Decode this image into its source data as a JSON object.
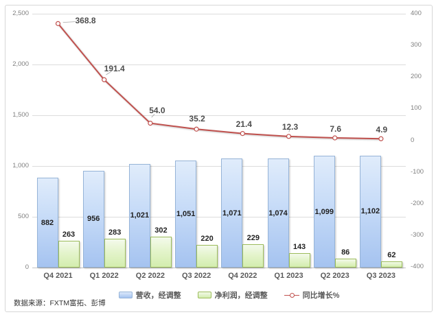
{
  "source_note": "数据来源：FXTM富拓、彭博",
  "colors": {
    "bar_revenue_fill_top": "#E0ECFB",
    "bar_revenue_fill_bottom": "#A5C3F0",
    "bar_revenue_border": "#95B3D7",
    "bar_profit_fill_top": "#F4FAEC",
    "bar_profit_fill_bottom": "#D3EDAE",
    "bar_profit_border": "#9BBB59",
    "line_growth": "#C0504D",
    "gridline": "#DCDCDC",
    "axis_text": "#7F7F7F",
    "label_text": "#595959"
  },
  "chart_data": {
    "type": "combo-bar-line",
    "categories": [
      "Q4 2021",
      "Q1 2022",
      "Q2 2022",
      "Q3 2022",
      "Q4 2022",
      "Q1 2023",
      "Q2 2023",
      "Q3 2023"
    ],
    "series": [
      {
        "name": "营收，经调整",
        "type": "bar",
        "axis": "left",
        "values": [
          882,
          956,
          1021,
          1051,
          1071,
          1074,
          1099,
          1102
        ],
        "labels": [
          "882",
          "956",
          "1,021",
          "1,051",
          "1,071",
          "1,074",
          "1,099",
          "1,102"
        ],
        "label_position": "inside-center"
      },
      {
        "name": "净利润，经调整",
        "type": "bar",
        "axis": "left",
        "values": [
          263,
          283,
          302,
          220,
          229,
          143,
          86,
          62
        ],
        "labels": [
          "263",
          "283",
          "302",
          "220",
          "229",
          "143",
          "86",
          "62"
        ],
        "label_position": "outside-top"
      },
      {
        "name": "同比增长%",
        "type": "line",
        "axis": "right",
        "values": [
          368.8,
          191.4,
          54.0,
          35.2,
          21.4,
          12.3,
          7.6,
          4.9
        ],
        "labels": [
          "368.8",
          "191.4",
          "54.0",
          "35.2",
          "21.4",
          "12.3",
          "7.6",
          "4.9"
        ],
        "label_offsets": [
          [
            40,
            -4
          ],
          [
            15,
            -16
          ],
          [
            10,
            -19
          ],
          [
            1,
            -15
          ],
          [
            2,
            -14
          ],
          [
            2,
            -14
          ],
          [
            1,
            -13
          ],
          [
            1,
            -13
          ]
        ],
        "leader_points": [
          0,
          1,
          2,
          5
        ],
        "marker": "open-circle"
      }
    ],
    "left_axis": {
      "min": 0,
      "max": 2500,
      "step": 500,
      "ticks": [
        "2,500",
        "2,000",
        "1,500",
        "1,000",
        "500",
        "0"
      ]
    },
    "right_axis": {
      "min": -400,
      "max": 400,
      "step": 100,
      "ticks": [
        "400",
        "300",
        "200",
        "100",
        "0",
        "-100",
        "-200",
        "-300",
        "-400"
      ]
    },
    "grid": "horizontal",
    "legend_position": "bottom",
    "title": ""
  },
  "legend": {
    "items": [
      {
        "label": "营收，经调整",
        "swatch": "bar-blue"
      },
      {
        "label": "净利润，经调整",
        "swatch": "bar-green"
      },
      {
        "label": "同比增长%",
        "swatch": "line-red"
      }
    ]
  }
}
